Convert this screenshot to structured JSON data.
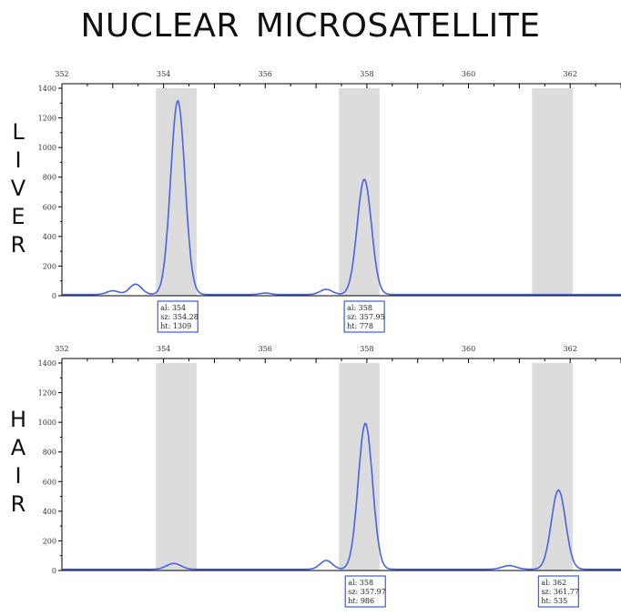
{
  "title": "NUCLEAR  MICROSATELLITE",
  "colors": {
    "trace": "#4a62e6",
    "bin": "#dcdcdc",
    "axis": "#000000",
    "box_border": "#3a5fd9"
  },
  "chart_data": [
    {
      "type": "line",
      "name": "liver",
      "row_label": [
        "L",
        "I",
        "V",
        "E",
        "R"
      ],
      "xlim": [
        352,
        363
      ],
      "ylim": [
        0,
        1400
      ],
      "x_ticks": [
        352,
        354,
        356,
        358,
        360,
        362
      ],
      "y_ticks": [
        0,
        200,
        400,
        600,
        800,
        1000,
        1200,
        1400
      ],
      "bins": [
        [
          353.85,
          354.65
        ],
        [
          357.45,
          358.25
        ],
        [
          361.25,
          362.05
        ]
      ],
      "peaks": [
        {
          "x": 353.0,
          "y": 25,
          "w": 0.12
        },
        {
          "x": 353.45,
          "y": 70,
          "w": 0.12
        },
        {
          "x": 354.28,
          "y": 1309,
          "w": 0.14
        },
        {
          "x": 356.0,
          "y": 10,
          "w": 0.1
        },
        {
          "x": 357.2,
          "y": 35,
          "w": 0.12
        },
        {
          "x": 357.95,
          "y": 778,
          "w": 0.14
        }
      ],
      "baseline": 8,
      "labels": [
        {
          "x": 354.28,
          "lines": [
            "al: 354",
            "sz: 354.28",
            "ht: 1309"
          ]
        },
        {
          "x": 357.95,
          "lines": [
            "al: 358",
            "sz: 357.95",
            "ht: 778"
          ]
        }
      ]
    },
    {
      "type": "line",
      "name": "hair",
      "row_label": [
        "H",
        "A",
        "I",
        "R"
      ],
      "xlim": [
        352,
        363
      ],
      "ylim": [
        0,
        1400
      ],
      "x_ticks": [
        352,
        354,
        356,
        358,
        360,
        362
      ],
      "y_ticks": [
        0,
        200,
        400,
        600,
        800,
        1000,
        1200,
        1400
      ],
      "bins": [
        [
          353.85,
          354.65
        ],
        [
          357.45,
          358.25
        ],
        [
          361.25,
          362.05
        ]
      ],
      "peaks": [
        {
          "x": 354.2,
          "y": 40,
          "w": 0.14
        },
        {
          "x": 357.2,
          "y": 60,
          "w": 0.12
        },
        {
          "x": 357.97,
          "y": 986,
          "w": 0.14
        },
        {
          "x": 360.8,
          "y": 25,
          "w": 0.14
        },
        {
          "x": 361.77,
          "y": 535,
          "w": 0.14
        }
      ],
      "baseline": 8,
      "labels": [
        {
          "x": 357.97,
          "lines": [
            "al: 358",
            "sz: 357.97",
            "ht: 986"
          ]
        },
        {
          "x": 361.77,
          "lines": [
            "al: 362",
            "sz: 361.77",
            "ht: 535"
          ]
        }
      ]
    }
  ]
}
